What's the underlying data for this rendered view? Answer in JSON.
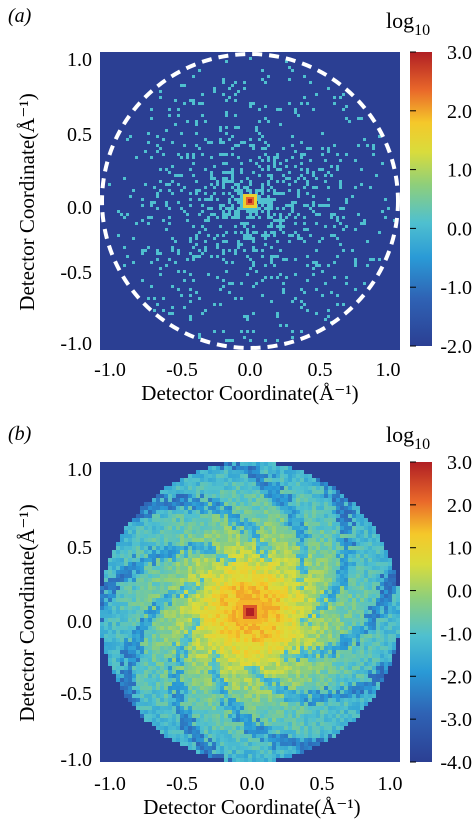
{
  "chart_data": [
    {
      "type": "heatmap",
      "panel_label": "(a)",
      "xlabel": "Detector Coordinate(Å⁻¹)",
      "ylabel": "Detector Coordinate(Å⁻¹)",
      "xlim": [
        -1.0,
        1.0
      ],
      "ylim": [
        -1.0,
        1.0
      ],
      "x_ticks": [
        "-1.0",
        "-0.5",
        "0.0",
        "0.5",
        "1.0"
      ],
      "y_ticks": [
        "1.0",
        "0.5",
        "0.0",
        "-0.5",
        "-1.0"
      ],
      "colorbar_label": "log10",
      "colorbar_ticks": [
        "3.0",
        "2.0",
        "1.0",
        "0.0",
        "-1.0",
        "-2.0"
      ],
      "colorbar_range": [
        -2.0,
        3.0
      ],
      "annotation": "dashed white circle",
      "background_color": "#2b3f93",
      "speckle_value": 0.0,
      "center_value": 3.0
    },
    {
      "type": "heatmap",
      "panel_label": "(b)",
      "xlabel": "Detector Coordinate(Å⁻¹)",
      "ylabel": "Detector Coordinate(Å⁻¹)",
      "xlim": [
        -1.0,
        1.0
      ],
      "ylim": [
        -1.0,
        1.0
      ],
      "x_ticks": [
        "-1.0",
        "-0.5",
        "0.0",
        "0.5",
        "1.0"
      ],
      "y_ticks": [
        "1.0",
        "0.5",
        "0.0",
        "-0.5",
        "-1.0"
      ],
      "colorbar_label": "log10",
      "colorbar_ticks": [
        "3.0",
        "2.0",
        "1.0",
        "0.0",
        "-1.0",
        "-2.0",
        "-3.0",
        "-4.0"
      ],
      "colorbar_range": [
        -4.0,
        3.0
      ],
      "background_color": "#2b3f93",
      "center_value": 3.0,
      "edge_value": -1.5
    }
  ]
}
